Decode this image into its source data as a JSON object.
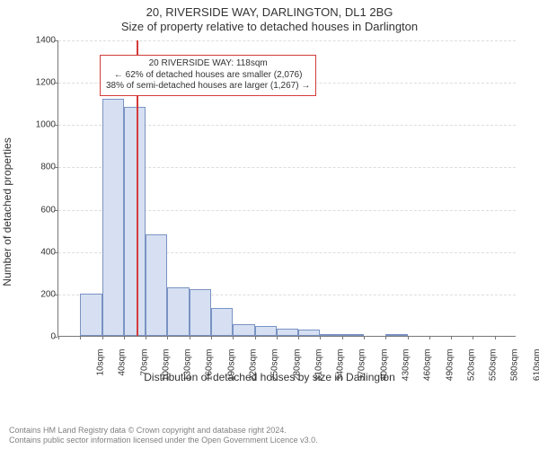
{
  "title_main": "20, RIVERSIDE WAY, DARLINGTON, DL1 2BG",
  "title_sub": "Size of property relative to detached houses in Darlington",
  "ylabel": "Number of detached properties",
  "xlabel": "Distribution of detached houses by size in Darlington",
  "footer_line1": "Contains HM Land Registry data © Crown copyright and database right 2024.",
  "footer_line2": "Contains public sector information licensed under the Open Government Licence v3.0.",
  "annotation": {
    "line1": "20 RIVERSIDE WAY: 118sqm",
    "line2": "← 62% of detached houses are smaller (2,076)",
    "line3": "38% of semi-detached houses are larger (1,267) →"
  },
  "chart": {
    "type": "histogram",
    "ylim": [
      0,
      1400
    ],
    "ytick_step": 200,
    "x_categories": [
      "10sqm",
      "40sqm",
      "70sqm",
      "100sqm",
      "130sqm",
      "160sqm",
      "190sqm",
      "220sqm",
      "250sqm",
      "280sqm",
      "310sqm",
      "340sqm",
      "370sqm",
      "400sqm",
      "430sqm",
      "460sqm",
      "490sqm",
      "520sqm",
      "550sqm",
      "580sqm",
      "610sqm"
    ],
    "values": [
      0,
      200,
      1120,
      1080,
      480,
      230,
      220,
      130,
      55,
      45,
      35,
      30,
      10,
      10,
      0,
      10,
      0,
      0,
      0,
      0,
      0
    ],
    "bar_fill": "#d6e0f2",
    "bar_stroke": "#7a93c4",
    "background_color": "#ffffff",
    "grid_color": "#dddddd",
    "axis_color": "#777777",
    "marker_color": "#d43b3b",
    "marker_value_sqm": 118,
    "x_min_sqm": 10,
    "x_bin_width_sqm": 30,
    "title_fontsize": 13,
    "label_fontsize": 12,
    "tick_fontsize": 10,
    "annot_fontsize": 10
  }
}
